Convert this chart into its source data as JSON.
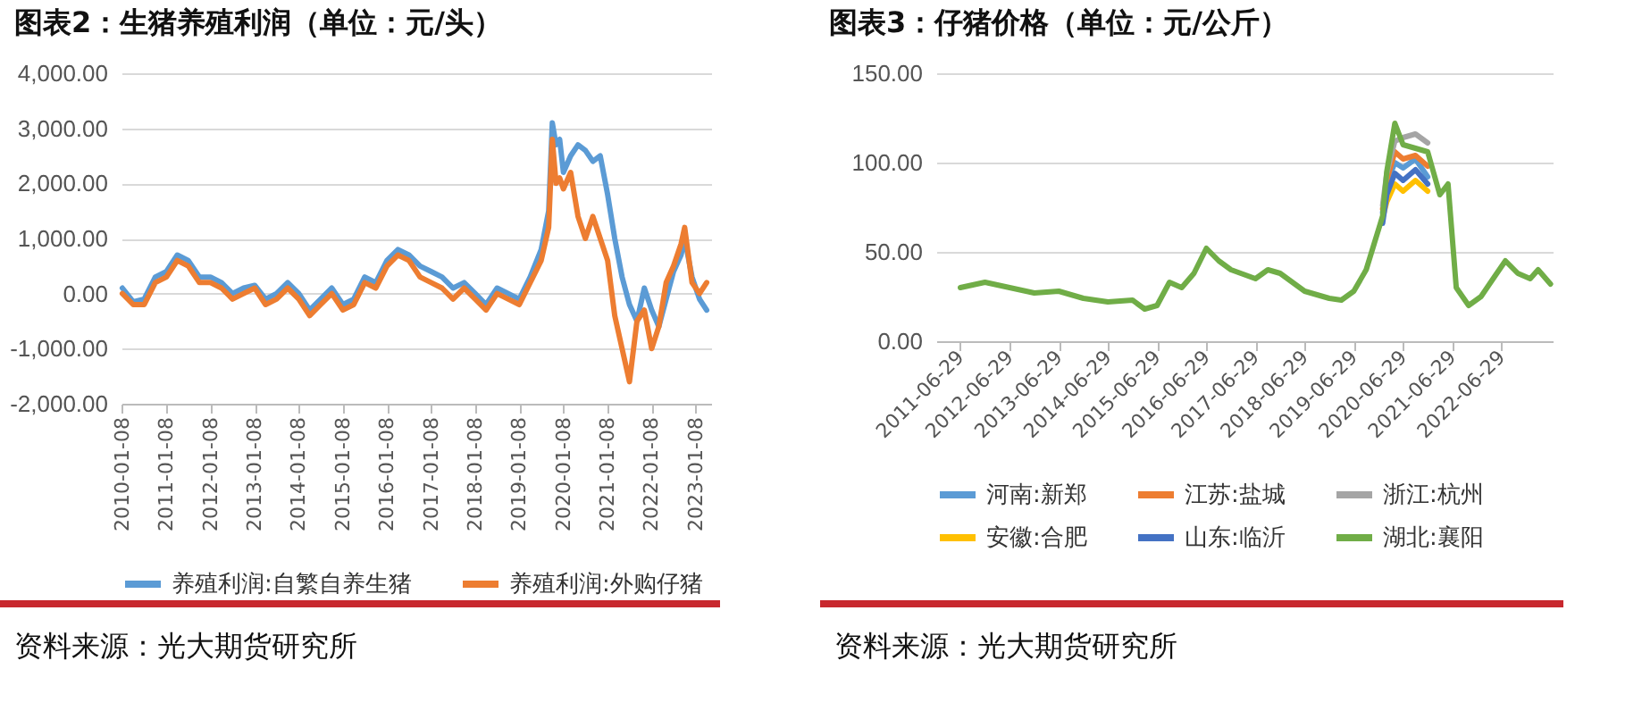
{
  "chart_data": [
    {
      "type": "line",
      "title": "图表2：生猪养殖利润（单位：元/头）",
      "annotations": [
        "资料来源：光大期货研究所"
      ],
      "x": [
        "2010-01-08",
        "2010-04-08",
        "2010-07-08",
        "2010-10-08",
        "2011-01-08",
        "2011-04-08",
        "2011-07-08",
        "2011-10-08",
        "2012-01-08",
        "2012-04-08",
        "2012-07-08",
        "2012-10-08",
        "2013-01-08",
        "2013-04-08",
        "2013-07-08",
        "2013-10-08",
        "2014-01-08",
        "2014-04-08",
        "2014-07-08",
        "2014-10-08",
        "2015-01-08",
        "2015-04-08",
        "2015-07-08",
        "2015-10-08",
        "2016-01-08",
        "2016-04-08",
        "2016-07-08",
        "2016-10-08",
        "2017-01-08",
        "2017-04-08",
        "2017-07-08",
        "2017-10-08",
        "2018-01-08",
        "2018-04-08",
        "2018-07-08",
        "2018-10-08",
        "2019-01-08",
        "2019-04-08",
        "2019-07-08",
        "2019-09-08",
        "2019-10-08",
        "2019-11-08",
        "2019-12-08",
        "2020-01-08",
        "2020-03-08",
        "2020-05-08",
        "2020-07-08",
        "2020-09-08",
        "2020-11-08",
        "2021-01-08",
        "2021-03-08",
        "2021-05-08",
        "2021-07-08",
        "2021-09-08",
        "2021-11-08",
        "2022-01-08",
        "2022-03-08",
        "2022-05-08",
        "2022-07-08",
        "2022-09-08",
        "2022-10-08",
        "2022-12-08",
        "2023-02-08",
        "2023-04-08"
      ],
      "series": [
        {
          "name": "养殖利润:自繁自养生猪",
          "color": "#5b9bd5",
          "values": [
            100,
            -150,
            -100,
            300,
            400,
            700,
            600,
            300,
            300,
            200,
            0,
            100,
            150,
            -100,
            0,
            200,
            0,
            -300,
            -100,
            100,
            -200,
            -100,
            300,
            200,
            600,
            800,
            700,
            500,
            400,
            300,
            100,
            200,
            0,
            -200,
            100,
            0,
            -100,
            300,
            800,
            1500,
            3100,
            2700,
            2800,
            2200,
            2500,
            2700,
            2600,
            2400,
            2500,
            1800,
            1000,
            300,
            -200,
            -500,
            100,
            -300,
            -600,
            -100,
            400,
            700,
            1000,
            300,
            -100,
            -300
          ]
        },
        {
          "name": "养殖利润:外购仔猪",
          "color": "#ed7d31",
          "values": [
            0,
            -200,
            -200,
            200,
            300,
            600,
            500,
            200,
            200,
            100,
            -100,
            0,
            100,
            -200,
            -100,
            100,
            -100,
            -400,
            -200,
            0,
            -300,
            -200,
            200,
            100,
            500,
            700,
            600,
            300,
            200,
            100,
            -100,
            100,
            -100,
            -300,
            0,
            -100,
            -200,
            200,
            600,
            1200,
            2800,
            2000,
            2100,
            1900,
            2200,
            1400,
            1000,
            1400,
            1000,
            600,
            -400,
            -1000,
            -1600,
            -500,
            -300,
            -1000,
            -600,
            200,
            500,
            900,
            1200,
            200,
            0,
            200
          ]
        }
      ],
      "xlim": [
        "2010-01-01",
        "2023-05-15"
      ],
      "xticks": [
        "2010-01-08",
        "2011-01-08",
        "2012-01-08",
        "2013-01-08",
        "2014-01-08",
        "2015-01-08",
        "2016-01-08",
        "2017-01-08",
        "2018-01-08",
        "2019-01-08",
        "2020-01-08",
        "2021-01-08",
        "2022-01-08",
        "2023-01-08"
      ],
      "ylim": [
        -2000,
        4000
      ],
      "yticks": [
        {
          "value": -2000,
          "label": "-2,000.00"
        },
        {
          "value": -1000,
          "label": "-1,000.00"
        },
        {
          "value": 0,
          "label": "0.00"
        },
        {
          "value": 1000,
          "label": "1,000.00"
        },
        {
          "value": 2000,
          "label": "2,000.00"
        },
        {
          "value": 3000,
          "label": "3,000.00"
        },
        {
          "value": 4000,
          "label": "4,000.00"
        }
      ],
      "grid": "y",
      "legend": "bottom",
      "line_style": "solid"
    },
    {
      "type": "line",
      "title": "图表3：仔猪价格（单位：元/公斤）",
      "annotations": [
        "资料来源：光大期货研究所"
      ],
      "x": [
        "2011-06-29",
        "2011-12-29",
        "2012-06-29",
        "2012-12-29",
        "2013-06-29",
        "2013-12-29",
        "2014-06-29",
        "2014-12-29",
        "2015-03-29",
        "2015-06-29",
        "2015-09-29",
        "2015-12-29",
        "2016-03-29",
        "2016-06-29",
        "2016-09-29",
        "2016-12-29",
        "2017-06-29",
        "2017-09-29",
        "2017-12-29",
        "2018-06-29",
        "2018-12-29",
        "2019-03-29",
        "2019-06-29",
        "2019-09-29",
        "2019-11-29",
        "2020-01-29",
        "2020-02-29",
        "2020-04-29",
        "2020-06-29",
        "2020-09-29",
        "2020-12-29",
        "2021-03-29",
        "2021-05-29",
        "2021-07-29",
        "2021-10-29",
        "2022-01-29",
        "2022-04-29",
        "2022-07-29",
        "2022-10-29",
        "2023-01-29",
        "2023-03-29",
        "2023-06-29"
      ],
      "series": [
        {
          "name": "河南:新郑",
          "color": "#5b9bd5",
          "values": [
            null,
            null,
            null,
            null,
            null,
            null,
            null,
            null,
            null,
            null,
            null,
            null,
            null,
            null,
            null,
            null,
            null,
            null,
            null,
            null,
            null,
            null,
            null,
            null,
            null,
            72,
            88,
            100,
            97,
            102,
            92,
            null,
            null,
            null,
            null,
            null,
            null,
            null,
            null,
            null,
            null,
            null
          ]
        },
        {
          "name": "江苏:盐城",
          "color": "#ed7d31",
          "values": [
            null,
            null,
            null,
            null,
            null,
            null,
            null,
            null,
            null,
            null,
            null,
            null,
            null,
            null,
            null,
            null,
            null,
            null,
            null,
            null,
            null,
            null,
            null,
            null,
            null,
            74,
            90,
            106,
            102,
            104,
            98,
            null,
            null,
            null,
            null,
            null,
            null,
            null,
            null,
            null,
            null,
            null
          ]
        },
        {
          "name": "浙江:杭州",
          "color": "#a5a5a5",
          "values": [
            null,
            null,
            null,
            null,
            null,
            null,
            null,
            null,
            null,
            null,
            null,
            null,
            null,
            null,
            null,
            null,
            null,
            null,
            null,
            null,
            null,
            null,
            null,
            null,
            null,
            76,
            94,
            112,
            114,
            116,
            111,
            null,
            null,
            null,
            null,
            null,
            null,
            null,
            null,
            null,
            null,
            null
          ]
        },
        {
          "name": "安徽:合肥",
          "color": "#ffc000",
          "values": [
            null,
            null,
            null,
            null,
            null,
            null,
            null,
            null,
            null,
            null,
            null,
            null,
            null,
            null,
            null,
            null,
            null,
            null,
            null,
            null,
            null,
            null,
            null,
            null,
            null,
            69,
            78,
            88,
            84,
            90,
            84,
            null,
            null,
            null,
            null,
            null,
            null,
            null,
            null,
            null,
            null,
            null
          ]
        },
        {
          "name": "山东:临沂",
          "color": "#4472c4",
          "values": [
            null,
            null,
            null,
            null,
            null,
            null,
            null,
            null,
            null,
            null,
            null,
            null,
            null,
            null,
            null,
            null,
            null,
            null,
            null,
            null,
            null,
            null,
            null,
            null,
            null,
            66,
            82,
            94,
            90,
            96,
            88,
            null,
            null,
            null,
            null,
            null,
            null,
            null,
            null,
            null,
            null,
            null
          ]
        },
        {
          "name": "湖北:襄阳",
          "color": "#70ad47",
          "values": [
            30,
            33,
            30,
            27,
            28,
            24,
            22,
            23,
            18,
            20,
            33,
            30,
            38,
            52,
            45,
            40,
            35,
            40,
            38,
            28,
            24,
            23,
            28,
            40,
            55,
            70,
            95,
            122,
            110,
            108,
            106,
            82,
            88,
            30,
            20,
            25,
            35,
            45,
            38,
            35,
            40,
            32
          ]
        }
      ],
      "xlim": [
        "2011-01-01",
        "2023-07-15"
      ],
      "xticks": [
        "2011-06-29",
        "2012-06-29",
        "2013-06-29",
        "2014-06-29",
        "2015-06-29",
        "2016-06-29",
        "2017-06-29",
        "2018-06-29",
        "2019-06-29",
        "2020-06-29",
        "2021-06-29",
        "2022-06-29"
      ],
      "ylim": [
        0,
        150
      ],
      "yticks": [
        {
          "value": 0,
          "label": "0.00"
        },
        {
          "value": 50,
          "label": "50.00"
        },
        {
          "value": 100,
          "label": "100.00"
        },
        {
          "value": 150,
          "label": "150.00"
        }
      ],
      "grid": "y",
      "legend": "bottom",
      "line_style": "solid"
    }
  ]
}
